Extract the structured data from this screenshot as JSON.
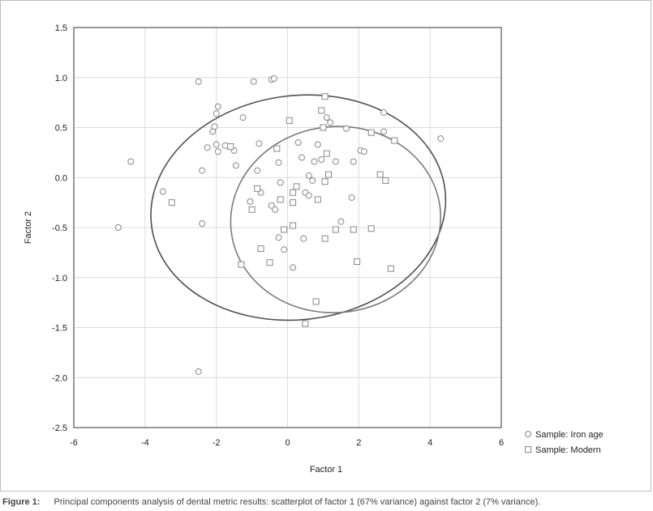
{
  "chart_data": {
    "type": "scatter",
    "xlabel": "Factor 1",
    "ylabel": "Factor 2",
    "xlim": [
      -6,
      6
    ],
    "ylim": [
      -2.5,
      1.5
    ],
    "x_ticks": [
      -6,
      -4,
      -2,
      0,
      2,
      4,
      6
    ],
    "y_ticks": [
      1.5,
      1.0,
      0.5,
      0.0,
      -0.5,
      -1.0,
      -1.5,
      -2.0,
      -2.5
    ],
    "y_tick_labels": [
      "1.5",
      "1.0",
      "0.5",
      "0.0",
      "-0.5",
      "-1.0",
      "-1.5",
      "-2.0",
      "-2.5"
    ],
    "grid": true,
    "legend_position": "bottom-right",
    "series": [
      {
        "name": "Sample: Iron age",
        "marker": "circle",
        "color": "#888888",
        "points": [
          [
            -4.75,
            -0.5
          ],
          [
            -4.4,
            0.16
          ],
          [
            -3.5,
            -0.14
          ],
          [
            -2.5,
            0.96
          ],
          [
            -2.5,
            -1.94
          ],
          [
            -2.4,
            -0.46
          ],
          [
            -2.4,
            0.07
          ],
          [
            -2.25,
            0.3
          ],
          [
            -2.1,
            0.46
          ],
          [
            -2.05,
            0.51
          ],
          [
            -2.0,
            0.64
          ],
          [
            -1.95,
            0.71
          ],
          [
            -2.0,
            0.33
          ],
          [
            -1.95,
            0.26
          ],
          [
            -1.75,
            0.32
          ],
          [
            -1.5,
            0.27
          ],
          [
            -1.45,
            0.12
          ],
          [
            -1.25,
            0.6
          ],
          [
            -1.05,
            -0.24
          ],
          [
            -0.95,
            0.96
          ],
          [
            -0.85,
            0.07
          ],
          [
            -0.8,
            0.34
          ],
          [
            -0.75,
            -0.15
          ],
          [
            -0.45,
            0.98
          ],
          [
            -0.38,
            0.99
          ],
          [
            -0.45,
            -0.28
          ],
          [
            -0.35,
            -0.32
          ],
          [
            -0.25,
            -0.6
          ],
          [
            -0.2,
            -0.05
          ],
          [
            -0.1,
            -0.72
          ],
          [
            -0.25,
            0.15
          ],
          [
            0.15,
            -0.9
          ],
          [
            0.3,
            0.35
          ],
          [
            0.4,
            0.2
          ],
          [
            0.45,
            -0.61
          ],
          [
            0.5,
            -0.15
          ],
          [
            0.6,
            -0.18
          ],
          [
            0.6,
            0.02
          ],
          [
            0.7,
            -0.03
          ],
          [
            0.75,
            0.16
          ],
          [
            0.85,
            0.33
          ],
          [
            0.95,
            0.18
          ],
          [
            1.1,
            0.6
          ],
          [
            1.2,
            0.55
          ],
          [
            1.35,
            0.16
          ],
          [
            1.5,
            -0.44
          ],
          [
            1.65,
            0.49
          ],
          [
            1.8,
            -0.2
          ],
          [
            1.85,
            0.16
          ],
          [
            2.05,
            0.27
          ],
          [
            2.15,
            0.26
          ],
          [
            2.7,
            0.65
          ],
          [
            2.7,
            0.46
          ],
          [
            4.3,
            0.39
          ]
        ]
      },
      {
        "name": "Sample: Modern",
        "marker": "square",
        "color": "#888888",
        "points": [
          [
            -3.25,
            -0.25
          ],
          [
            -1.6,
            0.31
          ],
          [
            -1.3,
            -0.87
          ],
          [
            -1.0,
            -0.32
          ],
          [
            -0.85,
            -0.11
          ],
          [
            -0.75,
            -0.71
          ],
          [
            -0.5,
            -0.85
          ],
          [
            -0.3,
            0.29
          ],
          [
            -0.2,
            -0.22
          ],
          [
            -0.1,
            -0.52
          ],
          [
            0.05,
            0.57
          ],
          [
            0.15,
            -0.15
          ],
          [
            0.15,
            -0.25
          ],
          [
            0.15,
            -0.48
          ],
          [
            0.25,
            -0.09
          ],
          [
            0.85,
            -0.22
          ],
          [
            0.95,
            0.67
          ],
          [
            1.0,
            0.5
          ],
          [
            1.05,
            0.81
          ],
          [
            1.05,
            -0.04
          ],
          [
            1.05,
            -0.61
          ],
          [
            1.1,
            0.24
          ],
          [
            1.15,
            0.03
          ],
          [
            0.8,
            -1.24
          ],
          [
            0.5,
            -1.46
          ],
          [
            1.35,
            -0.52
          ],
          [
            1.85,
            -0.52
          ],
          [
            1.95,
            -0.84
          ],
          [
            2.35,
            0.45
          ],
          [
            2.35,
            -0.51
          ],
          [
            2.6,
            0.03
          ],
          [
            2.75,
            -0.03
          ],
          [
            2.9,
            -0.91
          ],
          [
            3.0,
            0.37
          ]
        ]
      }
    ],
    "ellipses": [
      {
        "color": "#505050",
        "center": [
          0.3,
          -0.3
        ],
        "rx": 4.15,
        "ry": 1.12,
        "rotation_deg": 7
      },
      {
        "color": "#7a7a7a",
        "center": [
          1.35,
          -0.42
        ],
        "rx": 2.95,
        "ry": 0.93,
        "rotation_deg": 6
      }
    ]
  },
  "caption": {
    "label": "Figure 1:",
    "text": "Principal components analysis of dental metric results: scatterplot of factor 1 (67% variance) against factor 2 (7% variance)."
  }
}
